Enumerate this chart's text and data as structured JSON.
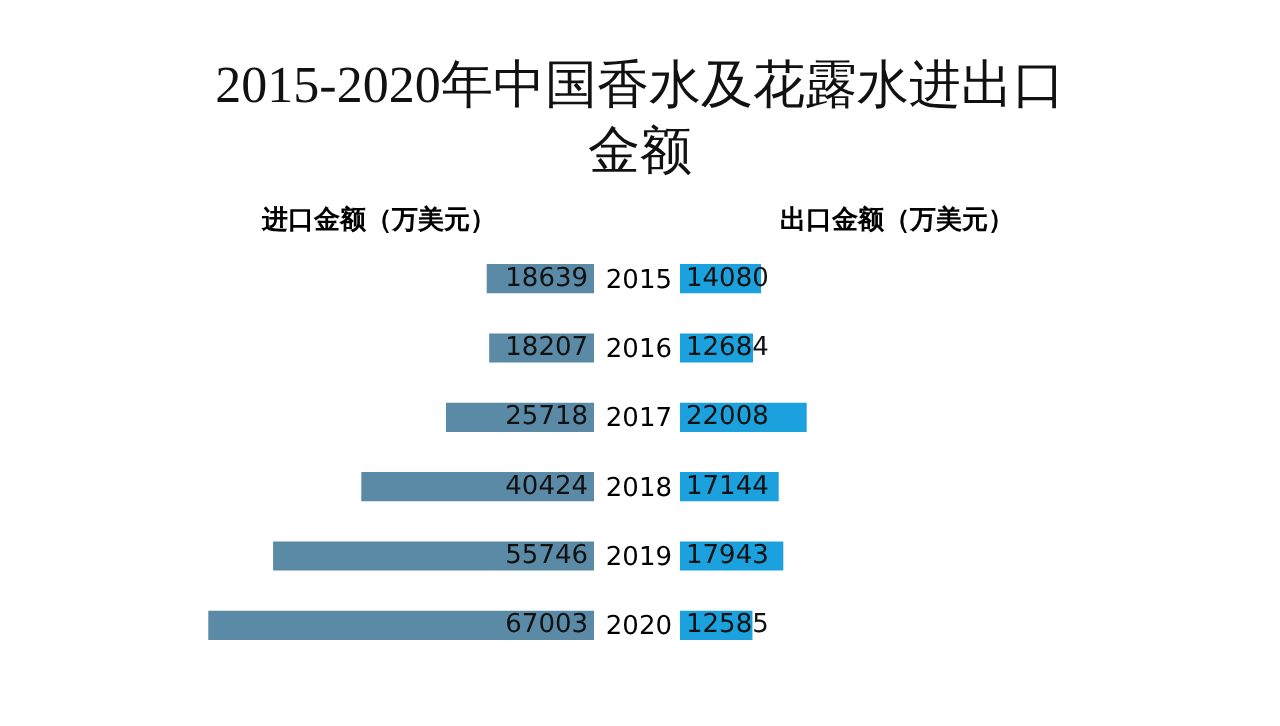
{
  "chart_data": [
    {
      "type": "bar",
      "orientation": "horizontal",
      "title": "2015-2020年中国香水及花露水进出口金额",
      "categories": [
        "2015",
        "2016",
        "2017",
        "2018",
        "2019",
        "2020"
      ],
      "series": [
        {
          "name": "进口金额（万美元）",
          "color": "#5a8aa6",
          "values": [
            18639,
            18207,
            25718,
            40424,
            55746,
            67003
          ]
        }
      ],
      "tick_labels": false,
      "data_labels": true,
      "legend": false,
      "grid": false
    },
    {
      "type": "bar",
      "orientation": "horizontal",
      "categories": [
        "2015",
        "2016",
        "2017",
        "2018",
        "2019",
        "2020"
      ],
      "series": [
        {
          "name": "出口金额（万美元）",
          "color": "#1ba1de",
          "values": [
            14080,
            12684,
            22008,
            17144,
            17943,
            12585
          ]
        }
      ],
      "tick_labels": "y",
      "data_labels": true,
      "legend": false,
      "grid": false
    }
  ]
}
